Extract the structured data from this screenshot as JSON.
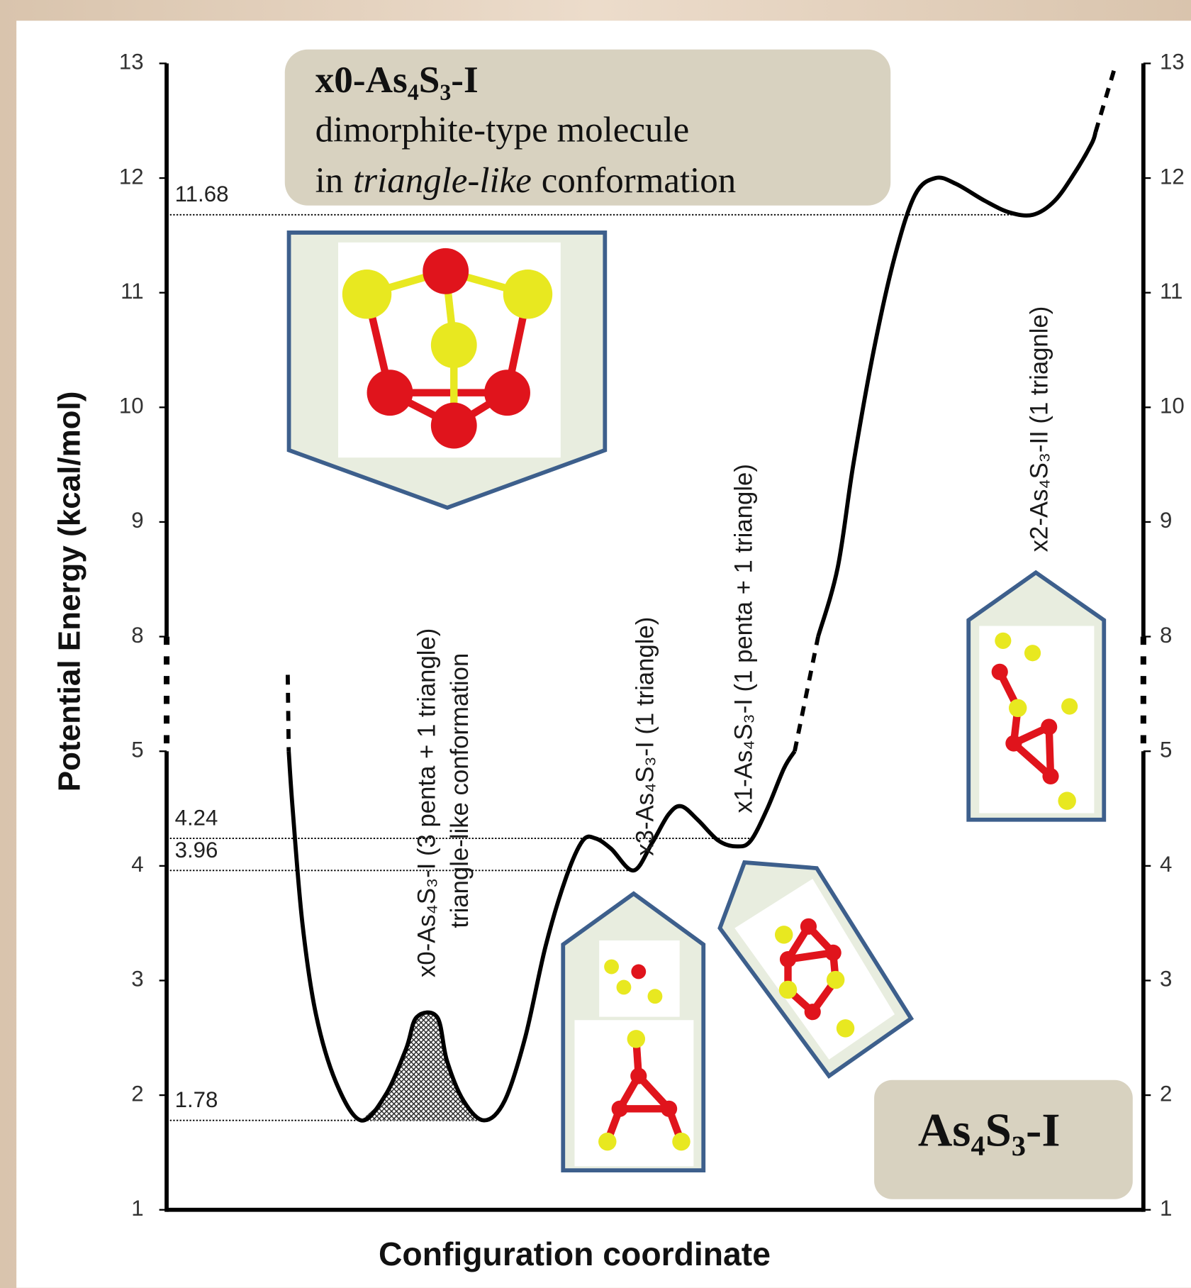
{
  "chart_data": {
    "type": "line",
    "ylabel": "Potential Energy (kcal/mol)",
    "xlabel": "Configuration coordinate",
    "xlim": [
      0,
      100
    ],
    "ylim": [
      1,
      13
    ],
    "ybreak": [
      5,
      8
    ],
    "yticks": [
      1,
      2,
      3,
      4,
      5,
      8,
      9,
      10,
      11,
      12,
      13
    ],
    "color": "#000000",
    "series": [
      {
        "dashed": true,
        "x": [
          12.4,
          12.5
        ],
        "values": [
          7.0,
          5.0
        ]
      },
      {
        "dashed": false,
        "x": [
          12.5,
          12.9,
          13.9,
          15.3,
          17.4,
          19.9,
          22.4,
          24.5,
          25.6,
          27.7,
          28.7,
          30.4,
          32.5,
          34.6,
          36.7,
          38.8,
          40.9,
          42.6,
          43.9,
          45.5,
          47.8,
          49.7,
          51.4,
          52.7,
          54.4,
          56.5,
          58.4,
          59.8,
          61.5,
          63.2,
          64.3
        ],
        "values": [
          5.0,
          4.5,
          3.5,
          2.7,
          2.1,
          1.78,
          2.0,
          2.4,
          2.68,
          2.68,
          2.3,
          1.95,
          1.78,
          1.95,
          2.5,
          3.3,
          3.9,
          4.22,
          4.24,
          4.15,
          3.96,
          4.2,
          4.45,
          4.52,
          4.4,
          4.22,
          4.17,
          4.22,
          4.5,
          4.85,
          5.0
        ]
      },
      {
        "dashed": true,
        "x": [
          64.3,
          66.7
        ],
        "values": [
          5.0,
          8.0
        ]
      },
      {
        "dashed": false,
        "x": [
          66.7,
          68.7,
          70.3,
          72.4,
          74.5,
          76.6,
          78.7,
          80.8,
          83.8,
          86.3,
          88.7,
          90.9,
          93.0,
          94.7,
          95.1
        ],
        "values": [
          8.0,
          8.6,
          9.5,
          10.5,
          11.3,
          11.85,
          12.0,
          11.95,
          11.8,
          11.7,
          11.68,
          11.8,
          12.05,
          12.3,
          12.4
        ]
      },
      {
        "dashed": true,
        "x": [
          95.1,
          97.2
        ],
        "values": [
          12.4,
          13.0
        ]
      }
    ],
    "levels": [
      11.68,
      4.24,
      3.96,
      1.78
    ],
    "states": [
      {
        "lines": [
          "x0-As₄S₃-I (3 penta + 1 triangle)",
          "triangle-like conformation"
        ]
      },
      {
        "lines": [
          "x3-As₄S₃-I (1 triangle)"
        ]
      },
      {
        "lines": [
          "x1-As₄S₃-I (1 penta + 1 triangle)"
        ]
      },
      {
        "lines": [
          "x2-As₄S₃-II (1 triagnle)"
        ]
      }
    ],
    "info_box": {
      "title": "x0-As₄S₃-I",
      "line1": "dimorphite-type molecule",
      "line2": [
        "in",
        "triangle-like",
        "conformation"
      ]
    },
    "phase_label": "As₄S₃-I"
  }
}
